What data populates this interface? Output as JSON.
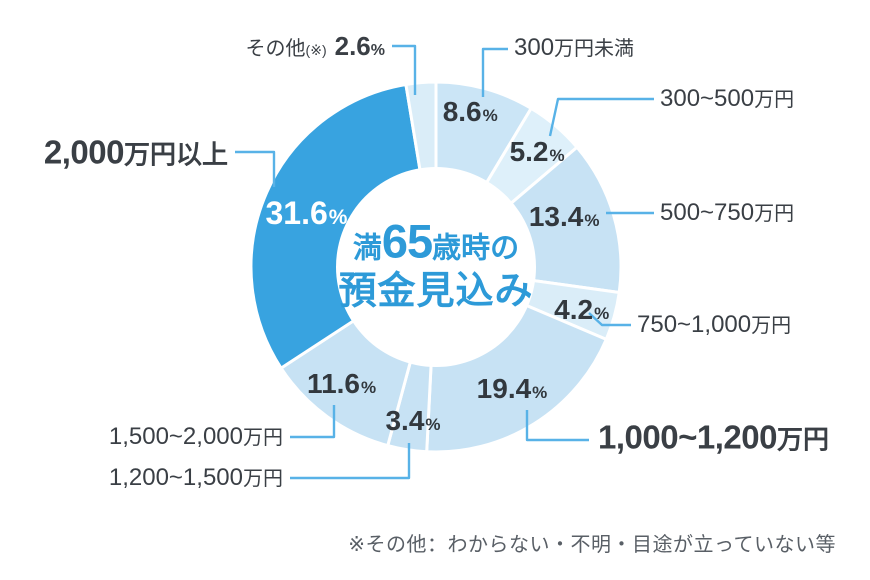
{
  "chart_data": {
    "type": "pie",
    "variant": "donut",
    "title": "満65歳時の預金見込み",
    "center_title": {
      "prefix": "満",
      "number": "65",
      "suffix": "歳時の",
      "line2": "預金見込み"
    },
    "unit": "%",
    "start_angle": "top",
    "direction": "clockwise",
    "legend_position": "none",
    "segments": [
      {
        "label": "300万円未満",
        "value": 8.6,
        "color": "#cbe5f6"
      },
      {
        "label": "300~500万円",
        "value": 5.2,
        "color": "#def0fa"
      },
      {
        "label": "500~750万円",
        "value": 13.4,
        "color": "#c7e2f4"
      },
      {
        "label": "750~1,000万円",
        "value": 4.2,
        "color": "#daedf8"
      },
      {
        "label": "1,000~1,200万円",
        "value": 19.4,
        "color": "#c7e2f4",
        "emphasized_label": true
      },
      {
        "label": "1,200~1,500万円",
        "value": 3.4,
        "color": "#c7e2f4"
      },
      {
        "label": "1,500~2,000万円",
        "value": 11.6,
        "color": "#c7e2f4"
      },
      {
        "label": "2,000万円以上",
        "value": 31.6,
        "color": "#38a3e0",
        "emphasized_label": true,
        "percent_text_color": "#ffffff"
      },
      {
        "label": "その他(※)",
        "value": 2.6,
        "color": "#daedf8",
        "percent_inline_with_label": true
      }
    ],
    "footnote": "※その他：わからない・不明・目途が立っていない等",
    "colors": {
      "accent": "#2d9ad8",
      "leader_line": "#58b2e7",
      "percent_text": "#32383e",
      "label_text": "#3a3f45",
      "footnote_text": "#595f66",
      "background": "#ffffff"
    }
  }
}
